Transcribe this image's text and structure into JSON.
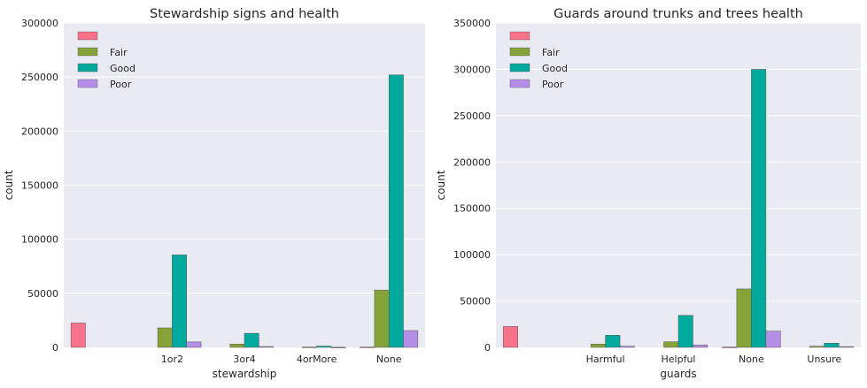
{
  "chart_data": [
    {
      "type": "bar",
      "title": "Stewardship signs and health",
      "xlabel": "stewardship",
      "ylabel": "count",
      "ylim": [
        0,
        300000
      ],
      "yticks": [
        0,
        50000,
        100000,
        150000,
        200000,
        250000,
        300000
      ],
      "grid": true,
      "legend_position": "top-left",
      "categories": [
        "",
        "1or2",
        "3or4",
        "4orMore",
        "None"
      ],
      "series": [
        {
          "name": "",
          "color": "#f77189",
          "values": [
            22500,
            0,
            0,
            0,
            300
          ]
        },
        {
          "name": "Fair",
          "color": "#86a33a",
          "values": [
            0,
            18000,
            3000,
            300,
            53000
          ]
        },
        {
          "name": "Good",
          "color": "#00a99d",
          "values": [
            0,
            85500,
            13000,
            1200,
            252000
          ]
        },
        {
          "name": "Poor",
          "color": "#b58ee8",
          "values": [
            0,
            5000,
            800,
            100,
            15500
          ]
        }
      ]
    },
    {
      "type": "bar",
      "title": "Guards around trunks and trees health",
      "xlabel": "guards",
      "ylabel": "count",
      "ylim": [
        0,
        350000
      ],
      "yticks": [
        0,
        50000,
        100000,
        150000,
        200000,
        250000,
        300000,
        350000
      ],
      "grid": true,
      "legend_position": "top-left",
      "categories": [
        "",
        "Harmful",
        "Helpful",
        "None",
        "Unsure"
      ],
      "series": [
        {
          "name": "",
          "color": "#f77189",
          "values": [
            22500,
            0,
            0,
            300,
            0
          ]
        },
        {
          "name": "Fair",
          "color": "#86a33a",
          "values": [
            0,
            3500,
            6000,
            63000,
            1200
          ]
        },
        {
          "name": "Good",
          "color": "#00a99d",
          "values": [
            0,
            13000,
            34500,
            300000,
            4500
          ]
        },
        {
          "name": "Poor",
          "color": "#b58ee8",
          "values": [
            0,
            1200,
            2500,
            17500,
            800
          ]
        }
      ]
    }
  ]
}
